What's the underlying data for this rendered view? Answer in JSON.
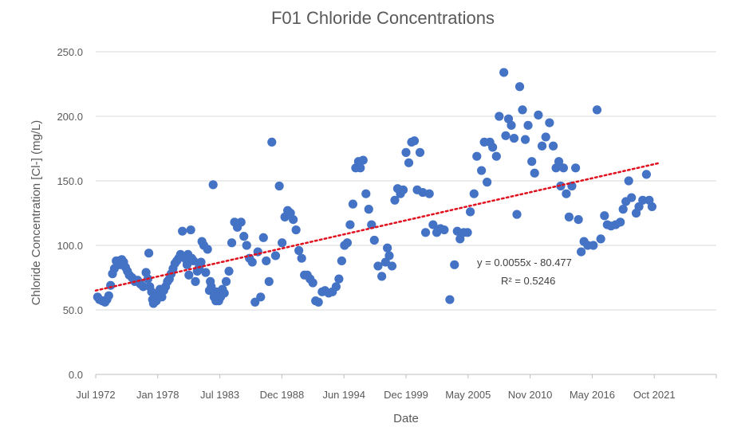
{
  "chart_data": {
    "type": "scatter",
    "title": "F01 Chloride Concentrations",
    "xlabel": "Date",
    "ylabel": "Chloride Concentration [Cl-] (mg/L)",
    "ylim": [
      0,
      250
    ],
    "yticks": [
      "0.0",
      "50.0",
      "100.0",
      "150.0",
      "200.0",
      "250.0"
    ],
    "xlim": [
      "1972-07",
      "2028-01"
    ],
    "xticks": [
      "Jul 1972",
      "Jan 1978",
      "Jul 1983",
      "Dec 1988",
      "Jun 1994",
      "Dec 1999",
      "May 2005",
      "Nov 2010",
      "May 2016",
      "Oct 2021"
    ],
    "grid": true,
    "colors": {
      "points": "#4472c4",
      "trendline": "#e0101e"
    },
    "trendline": {
      "type": "linear",
      "equation": "y = 0.0055x - 80.477",
      "r_squared": "R² = 0.5246",
      "start": {
        "x": "1972-07",
        "y": 65
      },
      "end": {
        "x": "2023-01",
        "y": 164
      }
    },
    "series": [
      {
        "points": [
          [
            "1972-09",
            60
          ],
          [
            "1972-11",
            58
          ],
          [
            "1973-02",
            57
          ],
          [
            "1973-05",
            56
          ],
          [
            "1973-07",
            58
          ],
          [
            "1973-09",
            61
          ],
          [
            "1973-11",
            69
          ],
          [
            "1974-01",
            78
          ],
          [
            "1974-03",
            82
          ],
          [
            "1974-05",
            88
          ],
          [
            "1974-07",
            88
          ],
          [
            "1974-09",
            85
          ],
          [
            "1974-11",
            89
          ],
          [
            "1975-01",
            87
          ],
          [
            "1975-03",
            83
          ],
          [
            "1975-05",
            80
          ],
          [
            "1975-07",
            77
          ],
          [
            "1975-10",
            75
          ],
          [
            "1976-01",
            72
          ],
          [
            "1976-04",
            73
          ],
          [
            "1976-07",
            70
          ],
          [
            "1976-10",
            68
          ],
          [
            "1977-01",
            79
          ],
          [
            "1977-03",
            74
          ],
          [
            "1977-04",
            94
          ],
          [
            "1977-05",
            68
          ],
          [
            "1977-07",
            64
          ],
          [
            "1977-08",
            58
          ],
          [
            "1977-09",
            55
          ],
          [
            "1977-10",
            60
          ],
          [
            "1977-12",
            57
          ],
          [
            "1978-02",
            63
          ],
          [
            "1978-04",
            66
          ],
          [
            "1978-06",
            60
          ],
          [
            "1978-08",
            65
          ],
          [
            "1978-10",
            68
          ],
          [
            "1978-12",
            72
          ],
          [
            "1979-02",
            74
          ],
          [
            "1979-04",
            78
          ],
          [
            "1979-06",
            82
          ],
          [
            "1979-08",
            86
          ],
          [
            "1979-10",
            88
          ],
          [
            "1979-12",
            90
          ],
          [
            "1980-02",
            93
          ],
          [
            "1980-03",
            92
          ],
          [
            "1980-04",
            111
          ],
          [
            "1980-06",
            91
          ],
          [
            "1980-08",
            89
          ],
          [
            "1980-09",
            85
          ],
          [
            "1980-10",
            93
          ],
          [
            "1980-11",
            77
          ],
          [
            "1981-01",
            112
          ],
          [
            "1981-02",
            90
          ],
          [
            "1981-04",
            88
          ],
          [
            "1981-06",
            72
          ],
          [
            "1981-08",
            80
          ],
          [
            "1981-10",
            83
          ],
          [
            "1981-12",
            87
          ],
          [
            "1982-01",
            103
          ],
          [
            "1982-03",
            100
          ],
          [
            "1982-05",
            79
          ],
          [
            "1982-07",
            97
          ],
          [
            "1982-09",
            65
          ],
          [
            "1982-10",
            72
          ],
          [
            "1982-11",
            68
          ],
          [
            "1983-01",
            147
          ],
          [
            "1983-02",
            60
          ],
          [
            "1983-03",
            62
          ],
          [
            "1983-04",
            57
          ],
          [
            "1983-05",
            64
          ],
          [
            "1983-07",
            57
          ],
          [
            "1983-09",
            60
          ],
          [
            "1983-11",
            66
          ],
          [
            "1984-01",
            63
          ],
          [
            "1984-03",
            72
          ],
          [
            "1984-06",
            80
          ],
          [
            "1984-09",
            102
          ],
          [
            "1984-12",
            118
          ],
          [
            "1985-03",
            114
          ],
          [
            "1985-07",
            118
          ],
          [
            "1985-10",
            107
          ],
          [
            "1986-01",
            100
          ],
          [
            "1986-04",
            90
          ],
          [
            "1986-07",
            87
          ],
          [
            "1986-10",
            56
          ],
          [
            "1987-01",
            95
          ],
          [
            "1987-04",
            60
          ],
          [
            "1987-07",
            106
          ],
          [
            "1987-10",
            88
          ],
          [
            "1988-01",
            72
          ],
          [
            "1988-04",
            180
          ],
          [
            "1988-08",
            92
          ],
          [
            "1988-12",
            146
          ],
          [
            "1989-03",
            102
          ],
          [
            "1989-06",
            122
          ],
          [
            "1989-09",
            127
          ],
          [
            "1989-12",
            125
          ],
          [
            "1990-03",
            120
          ],
          [
            "1990-06",
            112
          ],
          [
            "1990-09",
            96
          ],
          [
            "1990-12",
            90
          ],
          [
            "1991-03",
            77
          ],
          [
            "1991-06",
            77
          ],
          [
            "1991-09",
            74
          ],
          [
            "1991-12",
            71
          ],
          [
            "1992-03",
            57
          ],
          [
            "1992-06",
            56
          ],
          [
            "1992-10",
            64
          ],
          [
            "1993-01",
            65
          ],
          [
            "1993-05",
            63
          ],
          [
            "1993-09",
            64
          ],
          [
            "1994-01",
            68
          ],
          [
            "1994-04",
            74
          ],
          [
            "1994-07",
            88
          ],
          [
            "1994-10",
            100
          ],
          [
            "1995-01",
            102
          ],
          [
            "1995-04",
            116
          ],
          [
            "1995-07",
            132
          ],
          [
            "1995-10",
            160
          ],
          [
            "1996-01",
            165
          ],
          [
            "1996-03",
            160
          ],
          [
            "1996-06",
            166
          ],
          [
            "1996-09",
            140
          ],
          [
            "1996-12",
            128
          ],
          [
            "1997-03",
            116
          ],
          [
            "1997-06",
            104
          ],
          [
            "1997-10",
            84
          ],
          [
            "1998-02",
            76
          ],
          [
            "1998-06",
            87
          ],
          [
            "1998-08",
            98
          ],
          [
            "1998-10",
            92
          ],
          [
            "1999-01",
            84
          ],
          [
            "1999-04",
            135
          ],
          [
            "1999-07",
            144
          ],
          [
            "1999-10",
            140
          ],
          [
            "2000-01",
            143
          ],
          [
            "2000-04",
            172
          ],
          [
            "2000-07",
            164
          ],
          [
            "2000-10",
            180
          ],
          [
            "2001-01",
            181
          ],
          [
            "2001-04",
            143
          ],
          [
            "2001-07",
            172
          ],
          [
            "2001-10",
            141
          ],
          [
            "2002-01",
            110
          ],
          [
            "2002-05",
            140
          ],
          [
            "2002-09",
            116
          ],
          [
            "2003-01",
            110
          ],
          [
            "2003-05",
            113
          ],
          [
            "2003-09",
            112
          ],
          [
            "2004-03",
            58
          ],
          [
            "2004-08",
            85
          ],
          [
            "2004-11",
            111
          ],
          [
            "2005-02",
            105
          ],
          [
            "2005-06",
            110
          ],
          [
            "2005-10",
            110
          ],
          [
            "2006-01",
            126
          ],
          [
            "2006-05",
            140
          ],
          [
            "2006-08",
            169
          ],
          [
            "2007-01",
            158
          ],
          [
            "2007-04",
            180
          ],
          [
            "2007-07",
            149
          ],
          [
            "2007-10",
            180
          ],
          [
            "2008-01",
            176
          ],
          [
            "2008-05",
            169
          ],
          [
            "2008-08",
            200
          ],
          [
            "2009-01",
            234
          ],
          [
            "2009-03",
            185
          ],
          [
            "2009-06",
            198
          ],
          [
            "2009-09",
            193
          ],
          [
            "2009-12",
            183
          ],
          [
            "2010-03",
            124
          ],
          [
            "2010-06",
            223
          ],
          [
            "2010-09",
            205
          ],
          [
            "2010-12",
            182
          ],
          [
            "2011-03",
            193
          ],
          [
            "2011-07",
            165
          ],
          [
            "2011-10",
            156
          ],
          [
            "2012-02",
            201
          ],
          [
            "2012-06",
            177
          ],
          [
            "2012-10",
            184
          ],
          [
            "2013-02",
            195
          ],
          [
            "2013-06",
            177
          ],
          [
            "2013-09",
            160
          ],
          [
            "2013-12",
            165
          ],
          [
            "2014-02",
            146
          ],
          [
            "2014-05",
            160
          ],
          [
            "2014-08",
            140
          ],
          [
            "2014-11",
            122
          ],
          [
            "2015-02",
            146
          ],
          [
            "2015-06",
            160
          ],
          [
            "2015-09",
            120
          ],
          [
            "2015-12",
            95
          ],
          [
            "2016-03",
            103
          ],
          [
            "2016-07",
            100
          ],
          [
            "2017-01",
            100
          ],
          [
            "2017-05",
            205
          ],
          [
            "2017-09",
            105
          ],
          [
            "2018-01",
            123
          ],
          [
            "2018-04",
            116
          ],
          [
            "2018-08",
            115
          ],
          [
            "2019-01",
            116
          ],
          [
            "2019-06",
            118
          ],
          [
            "2019-09",
            128
          ],
          [
            "2019-12",
            134
          ],
          [
            "2020-03",
            150
          ],
          [
            "2020-06",
            137
          ],
          [
            "2020-11",
            125
          ],
          [
            "2021-02",
            130
          ],
          [
            "2021-06",
            135
          ],
          [
            "2021-10",
            155
          ],
          [
            "2022-01",
            135
          ],
          [
            "2022-04",
            130
          ]
        ]
      }
    ]
  }
}
